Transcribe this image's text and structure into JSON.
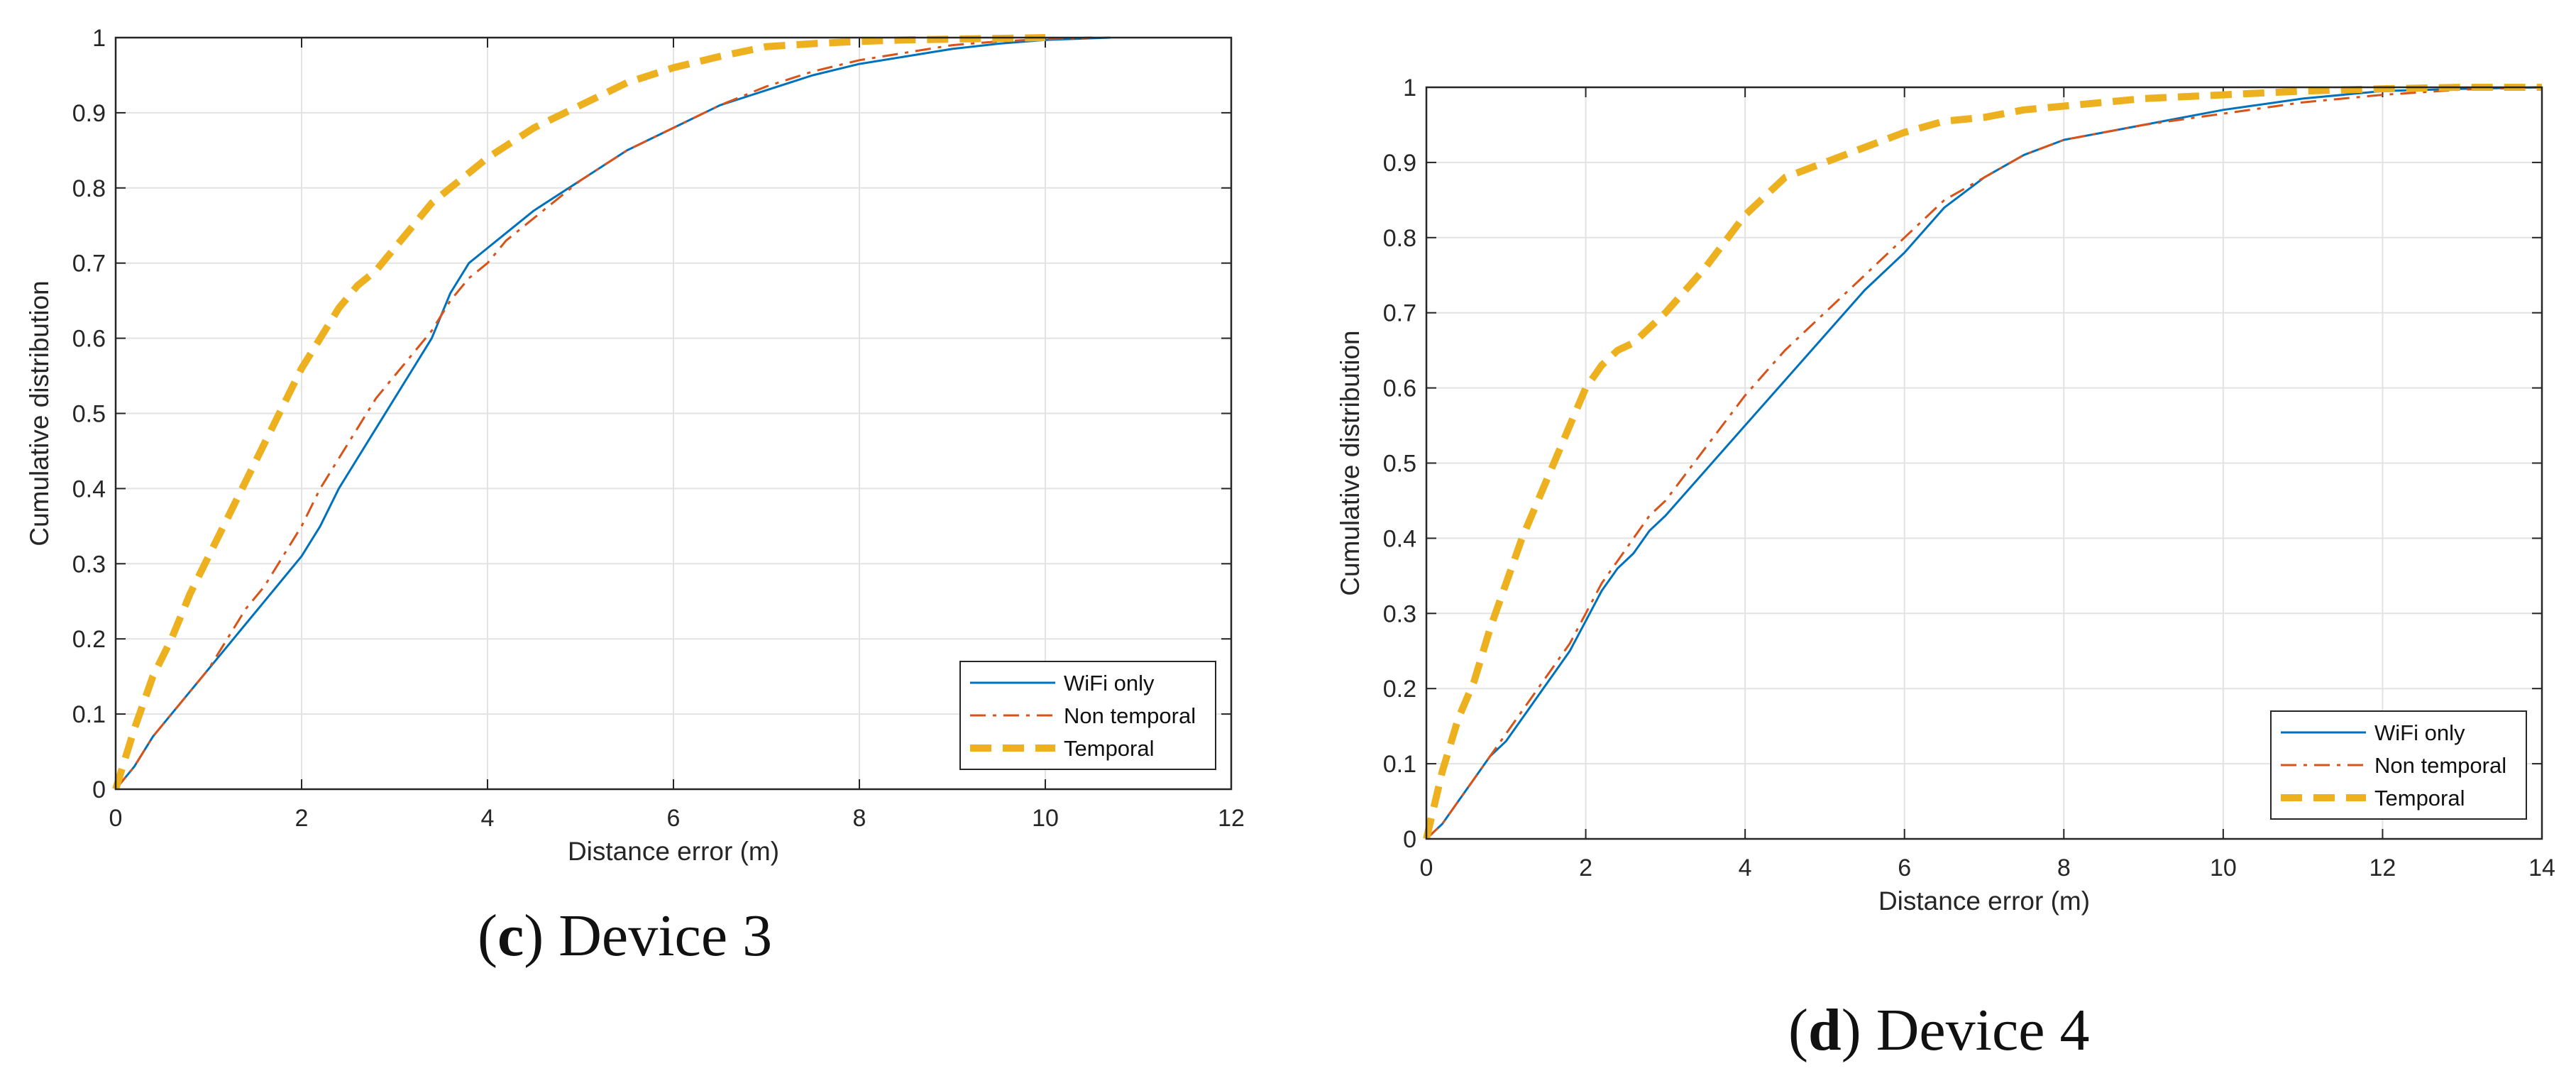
{
  "chart_data": [
    {
      "type": "line",
      "caption_letter": "c",
      "caption_text": "Device 3",
      "xlabel": "Distance error (m)",
      "ylabel": "Cumulative distribution",
      "xlim": [
        0,
        12
      ],
      "ylim": [
        0,
        1
      ],
      "xticks": [
        "0",
        "2",
        "4",
        "6",
        "8",
        "10",
        "12"
      ],
      "yticks": [
        "0",
        "0.1",
        "0.2",
        "0.3",
        "0.4",
        "0.5",
        "0.6",
        "0.7",
        "0.8",
        "0.9",
        "1"
      ],
      "grid": true,
      "legend_position": "bottom-right",
      "series": [
        {
          "name": "WiFi only",
          "color": "#0072BD",
          "style": "solid",
          "x": [
            0,
            0.2,
            0.4,
            0.6,
            0.8,
            1.0,
            1.2,
            1.4,
            1.6,
            1.8,
            2.0,
            2.2,
            2.4,
            2.6,
            2.8,
            3.0,
            3.2,
            3.4,
            3.6,
            3.8,
            4.0,
            4.2,
            4.5,
            5.0,
            5.5,
            6.0,
            6.5,
            7.0,
            7.5,
            8.0,
            8.5,
            9.0,
            9.5,
            10.0,
            10.7
          ],
          "y": [
            0,
            0.03,
            0.07,
            0.1,
            0.13,
            0.16,
            0.19,
            0.22,
            0.25,
            0.28,
            0.31,
            0.35,
            0.4,
            0.44,
            0.48,
            0.52,
            0.56,
            0.6,
            0.66,
            0.7,
            0.72,
            0.74,
            0.77,
            0.81,
            0.85,
            0.88,
            0.91,
            0.93,
            0.95,
            0.965,
            0.975,
            0.985,
            0.992,
            0.997,
            1.0
          ]
        },
        {
          "name": "Non temporal",
          "color": "#D95319",
          "style": "dashdot",
          "x": [
            0,
            0.2,
            0.4,
            0.6,
            0.8,
            1.0,
            1.2,
            1.4,
            1.6,
            1.8,
            2.0,
            2.2,
            2.4,
            2.6,
            2.8,
            3.0,
            3.2,
            3.4,
            3.6,
            3.8,
            4.0,
            4.2,
            4.5,
            5.0,
            5.5,
            6.0,
            6.5,
            7.0,
            7.5,
            8.0,
            8.5,
            9.0,
            9.5,
            10.0,
            10.5
          ],
          "y": [
            0,
            0.03,
            0.07,
            0.1,
            0.13,
            0.16,
            0.2,
            0.24,
            0.27,
            0.31,
            0.35,
            0.4,
            0.44,
            0.48,
            0.52,
            0.55,
            0.58,
            0.61,
            0.65,
            0.68,
            0.7,
            0.73,
            0.76,
            0.81,
            0.85,
            0.88,
            0.91,
            0.935,
            0.955,
            0.97,
            0.98,
            0.99,
            0.995,
            0.998,
            1.0
          ]
        },
        {
          "name": "Temporal",
          "color": "#EDB120",
          "style": "dashed",
          "x": [
            0,
            0.2,
            0.4,
            0.6,
            0.8,
            1.0,
            1.2,
            1.4,
            1.6,
            1.8,
            2.0,
            2.2,
            2.4,
            2.6,
            2.8,
            3.0,
            3.2,
            3.4,
            3.6,
            3.8,
            4.0,
            4.5,
            5.0,
            5.5,
            6.0,
            6.5,
            7.0,
            7.5,
            8.0,
            8.5,
            9.0,
            10.0
          ],
          "y": [
            0,
            0.08,
            0.15,
            0.2,
            0.26,
            0.31,
            0.36,
            0.41,
            0.46,
            0.51,
            0.56,
            0.6,
            0.64,
            0.67,
            0.69,
            0.72,
            0.75,
            0.78,
            0.8,
            0.82,
            0.84,
            0.88,
            0.91,
            0.94,
            0.96,
            0.975,
            0.988,
            0.992,
            0.995,
            0.997,
            0.998,
            1.0
          ]
        }
      ]
    },
    {
      "type": "line",
      "caption_letter": "d",
      "caption_text": "Device 4",
      "xlabel": "Distance error (m)",
      "ylabel": "Cumulative distribution",
      "xlim": [
        0,
        14
      ],
      "ylim": [
        0,
        1
      ],
      "xticks": [
        "0",
        "2",
        "4",
        "6",
        "8",
        "10",
        "12",
        "14"
      ],
      "yticks": [
        "0",
        "0.1",
        "0.2",
        "0.3",
        "0.4",
        "0.5",
        "0.6",
        "0.7",
        "0.8",
        "0.9",
        "1"
      ],
      "grid": true,
      "legend_position": "bottom-right",
      "series": [
        {
          "name": "WiFi only",
          "color": "#0072BD",
          "style": "solid",
          "x": [
            0,
            0.2,
            0.4,
            0.6,
            0.8,
            1.0,
            1.2,
            1.4,
            1.6,
            1.8,
            2.0,
            2.2,
            2.4,
            2.6,
            2.8,
            3.0,
            3.5,
            4.0,
            4.5,
            5.0,
            5.5,
            6.0,
            6.5,
            7.0,
            7.5,
            8.0,
            9.0,
            10.0,
            11.0,
            12.0,
            13.0,
            14.0
          ],
          "y": [
            0,
            0.02,
            0.05,
            0.08,
            0.11,
            0.13,
            0.16,
            0.19,
            0.22,
            0.25,
            0.29,
            0.33,
            0.36,
            0.38,
            0.41,
            0.43,
            0.49,
            0.55,
            0.61,
            0.67,
            0.73,
            0.78,
            0.84,
            0.88,
            0.91,
            0.93,
            0.95,
            0.97,
            0.985,
            0.995,
            0.998,
            1.0
          ]
        },
        {
          "name": "Non temporal",
          "color": "#D95319",
          "style": "dashdot",
          "x": [
            0,
            0.2,
            0.4,
            0.6,
            0.8,
            1.0,
            1.2,
            1.4,
            1.6,
            1.8,
            2.0,
            2.2,
            2.4,
            2.6,
            2.8,
            3.0,
            3.5,
            4.0,
            4.5,
            5.0,
            5.5,
            6.0,
            6.5,
            7.0,
            7.5,
            8.0,
            9.0,
            10.0,
            11.0,
            12.0,
            13.0,
            14.0
          ],
          "y": [
            0,
            0.02,
            0.05,
            0.08,
            0.11,
            0.14,
            0.17,
            0.2,
            0.23,
            0.26,
            0.3,
            0.34,
            0.37,
            0.4,
            0.43,
            0.45,
            0.52,
            0.59,
            0.65,
            0.7,
            0.75,
            0.8,
            0.85,
            0.88,
            0.91,
            0.93,
            0.95,
            0.965,
            0.98,
            0.99,
            0.997,
            1.0
          ]
        },
        {
          "name": "Temporal",
          "color": "#EDB120",
          "style": "dashed",
          "x": [
            0,
            0.2,
            0.4,
            0.6,
            0.8,
            1.0,
            1.2,
            1.4,
            1.6,
            1.8,
            2.0,
            2.2,
            2.4,
            2.6,
            2.8,
            3.0,
            3.5,
            4.0,
            4.5,
            5.0,
            5.5,
            6.0,
            6.5,
            7.0,
            7.5,
            8.0,
            9.0,
            10.0,
            11.0,
            12.0,
            13.0,
            14.0
          ],
          "y": [
            0,
            0.09,
            0.16,
            0.21,
            0.28,
            0.34,
            0.4,
            0.45,
            0.5,
            0.55,
            0.6,
            0.63,
            0.65,
            0.66,
            0.68,
            0.7,
            0.76,
            0.83,
            0.88,
            0.9,
            0.92,
            0.94,
            0.955,
            0.96,
            0.97,
            0.975,
            0.985,
            0.99,
            0.995,
            0.998,
            1.0,
            1.0
          ]
        }
      ]
    }
  ]
}
